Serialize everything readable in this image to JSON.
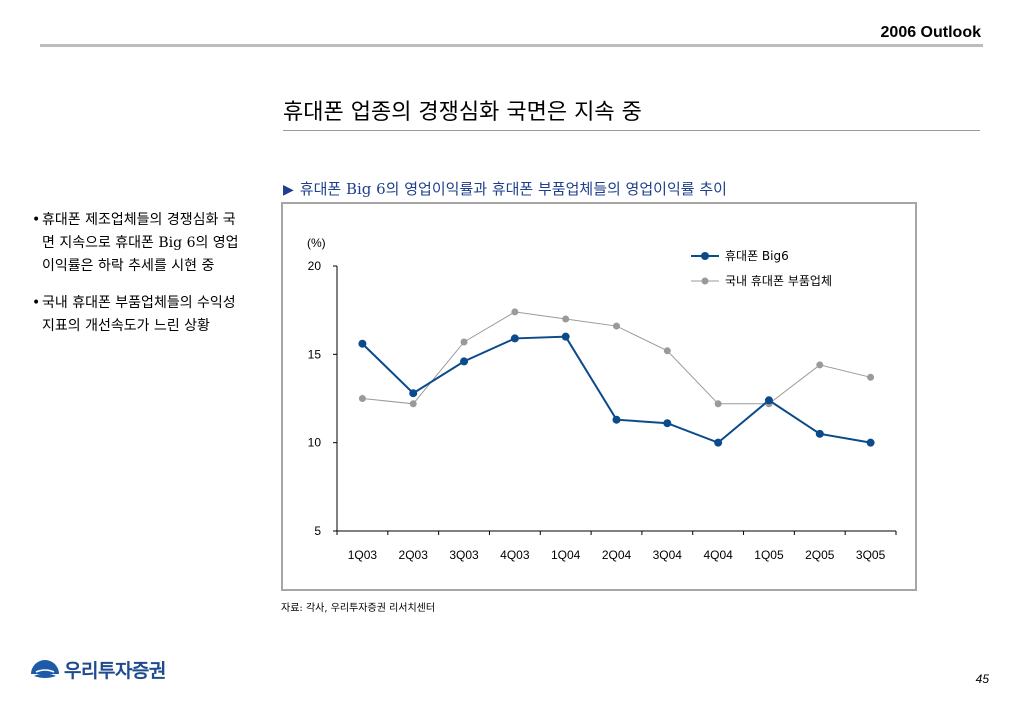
{
  "header": {
    "title": "2006 Outlook"
  },
  "page_title": "휴대폰 업종의 경쟁심화 국면은 지속 중",
  "subtitle": "휴대폰 Big 6의 영업이익률과 휴대폰 부품업체들의 영업이익률 추이",
  "bullets": [
    {
      "text": "휴대폰 제조업체들의 경쟁심화 국면 지속으로 휴대폰 Big 6의 영업이익률은 하락 추세를 시현 중"
    },
    {
      "text": "국내 휴대폰 부품업체들의 수익성 지표의 개선속도가 느린 상황"
    }
  ],
  "source": "자료: 각사, 우리투자증권 리서치센터",
  "logo": {
    "text": "우리투자증권"
  },
  "page_number": "45",
  "colors": {
    "series1": "#0b4a8b",
    "series2": "#9a9a9a",
    "accent": "#1f3f8c"
  },
  "chart_data": {
    "type": "line",
    "ylabel": "(%)",
    "ylim": [
      5,
      20
    ],
    "yticks": [
      5,
      10,
      15,
      20
    ],
    "categories": [
      "1Q03",
      "2Q03",
      "3Q03",
      "4Q03",
      "1Q04",
      "2Q04",
      "3Q04",
      "4Q04",
      "1Q05",
      "2Q05",
      "3Q05"
    ],
    "series": [
      {
        "name": "휴대폰 Big6",
        "color": "#0b4a8b",
        "values": [
          15.6,
          12.8,
          14.6,
          15.9,
          16.0,
          11.3,
          11.1,
          10.0,
          12.4,
          10.5,
          10.0
        ]
      },
      {
        "name": "국내 휴대폰 부품업체",
        "color": "#9a9a9a",
        "values": [
          12.5,
          12.2,
          15.7,
          17.4,
          17.0,
          16.6,
          15.2,
          12.2,
          12.2,
          14.4,
          13.7
        ]
      }
    ],
    "legend": "top-right",
    "grid": false
  }
}
